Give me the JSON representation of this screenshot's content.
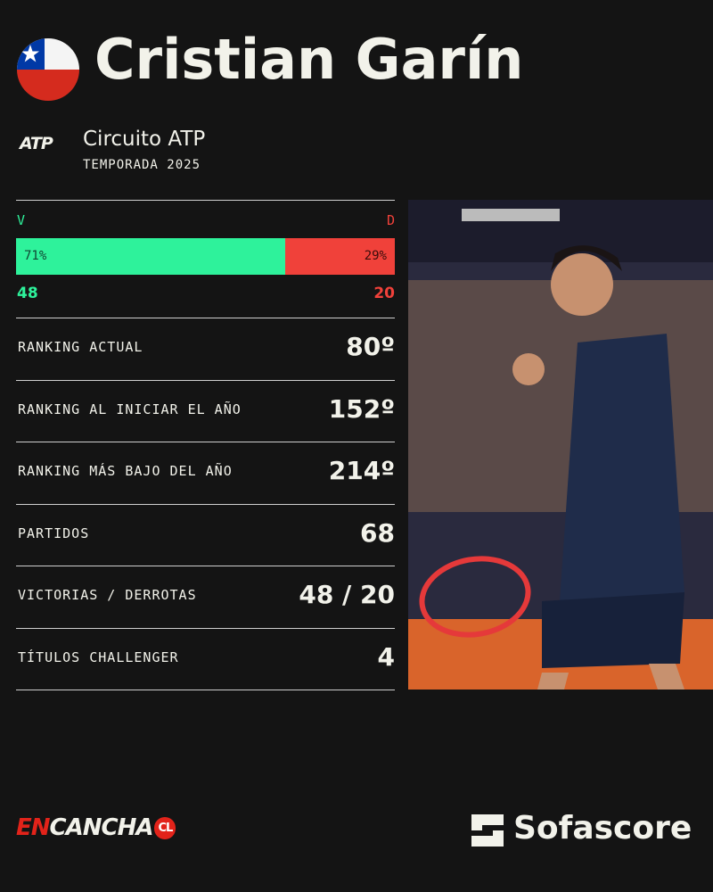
{
  "header": {
    "title": "Cristian Garín"
  },
  "circuit": {
    "logo": "ATP",
    "name": "Circuito ATP",
    "season": "TEMPORADA 2025"
  },
  "record": {
    "win_label": "V",
    "loss_label": "D",
    "win_pct": {
      "value": 71,
      "label": "71%"
    },
    "loss_pct": {
      "value": 29,
      "label": "29%"
    },
    "wins": 48,
    "losses": 20,
    "win_color": "#2ef29b",
    "loss_color": "#f0413a"
  },
  "stats": [
    {
      "label": "RANKING ACTUAL",
      "value": "80º"
    },
    {
      "label": "RANKING AL INICIAR EL AÑO",
      "value": "152º"
    },
    {
      "label": "RANKING MÁS BAJO DEL AÑO",
      "value": "214º"
    },
    {
      "label": "PARTIDOS",
      "value": "68"
    },
    {
      "label": "VICTORIAS / DERROTAS",
      "value": "48 / 20"
    },
    {
      "label": "TÍTULOS CHALLENGER",
      "value": "4"
    }
  ],
  "footer": {
    "brand_left": {
      "en": "EN",
      "cancha": "CANCHA",
      "cl": "CL"
    },
    "brand_right": "Sofascore"
  }
}
